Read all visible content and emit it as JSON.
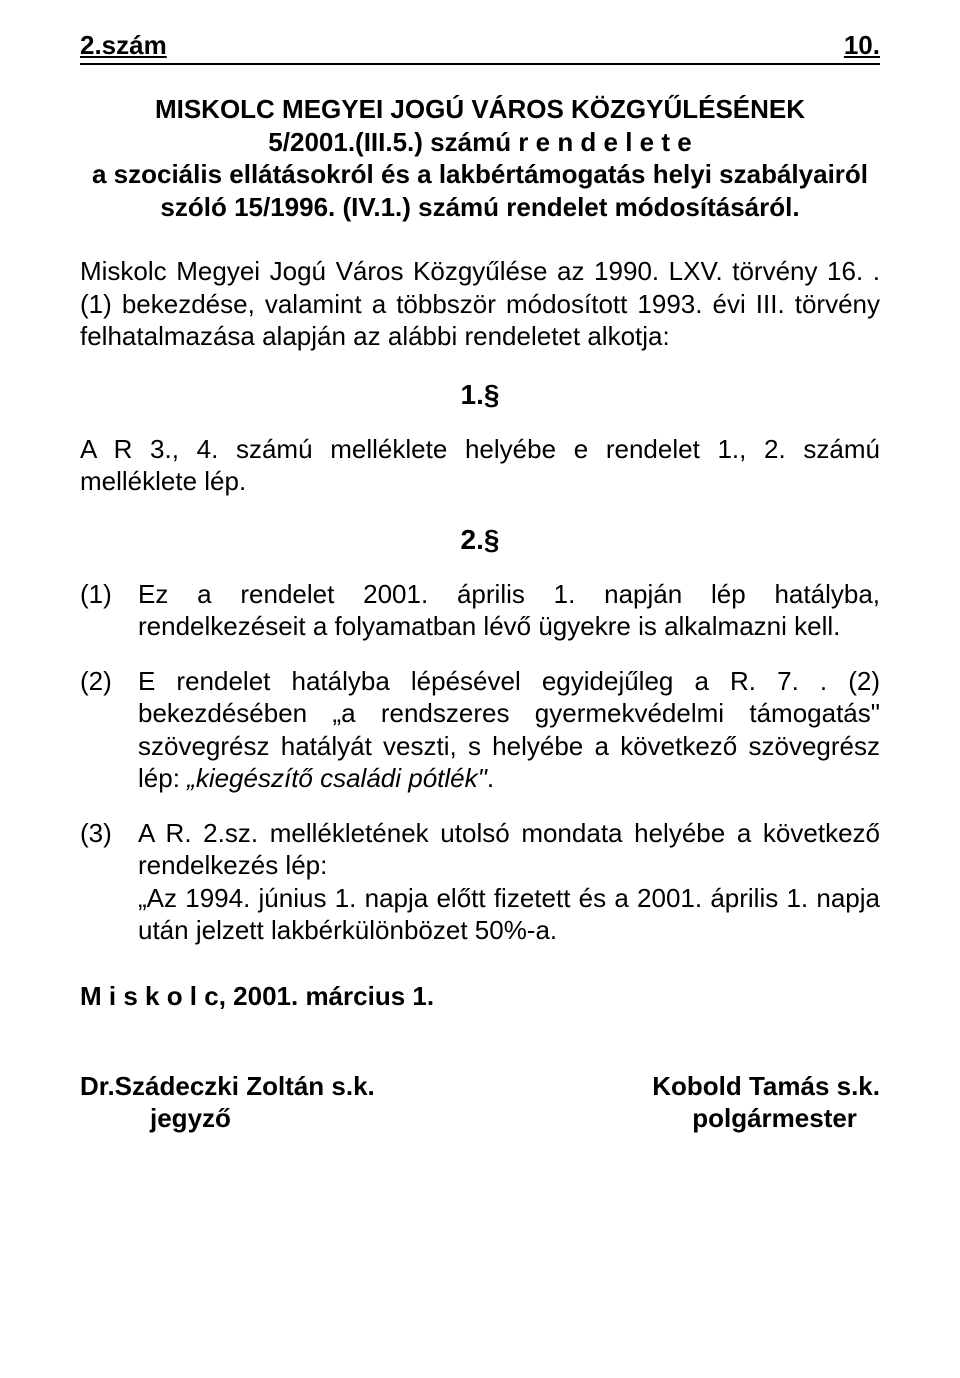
{
  "header": {
    "left": "2.szám",
    "right": "10."
  },
  "title": {
    "line1": "MISKOLC MEGYEI JOGÚ VÁROS KÖZGYŰLÉSÉNEK",
    "line2": "5/2001.(III.5.) számú r e n d e l e t e",
    "line3": "a szociális ellátásokról és a lakbértámogatás helyi szabályairól",
    "line4": "szóló 15/1996. (IV.1.) számú rendelet módosításáról."
  },
  "intro": "Miskolc Megyei Jogú Város Közgyűlése az 1990. LXV. törvény 16. . (1) bekezdése, valamint a többször módosított 1993. évi III. törvény felhatalmazása alapján az alábbi rendeletet alkotja:",
  "section1": {
    "num": "1.§",
    "text": "A R 3., 4. számú melléklete helyébe e rendelet 1., 2. számú melléklete lép."
  },
  "section2": {
    "num": "2.§",
    "items": [
      {
        "n": "(1)",
        "text": "Ez a rendelet 2001. április 1. napján lép hatályba, rendelkezéseit a folyamatban lévő ügyekre is alkalmazni kell."
      },
      {
        "n": "(2)",
        "text_before": "E rendelet hatályba lépésével egyidejűleg a R. 7. . (2) bekezdésében „a rendszeres gyermekvédelmi támogatás\" szövegrész hatályát veszti, s helyébe a következő szövegrész lép: ",
        "italic": "„kiegészítő családi pótlék\"",
        "text_after": "."
      },
      {
        "n": "(3)",
        "text": "A R. 2.sz. mellékletének utolsó mondata helyébe a következő rendelkezés lép:",
        "quote": "„Az 1994. június 1. napja előtt fizetett és a 2001. április 1. napja után jelzett lakbérkülönbözet 50%-a."
      }
    ]
  },
  "closing": "M i s k o l c, 2001. március 1.",
  "signatures": {
    "left": {
      "name": "Dr.Szádeczki Zoltán s.k.",
      "role": "jegyző"
    },
    "right": {
      "name": "Kobold Tamás s.k.",
      "role": "polgármester"
    }
  }
}
